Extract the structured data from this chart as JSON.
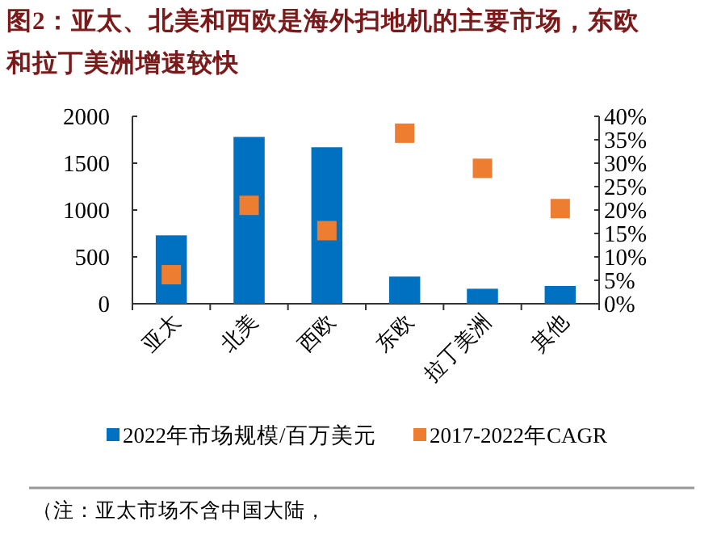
{
  "chart_data": {
    "type": "bar",
    "title": "图2：亚太、北美和西欧是海外扫地机的主要市场，东欧和拉丁美洲增速较快",
    "categories": [
      "亚太",
      "北美",
      "西欧",
      "东欧",
      "拉丁美洲",
      "其他"
    ],
    "series": [
      {
        "name": "2022年市场规模/百万美元",
        "color": "#0070c0",
        "values": [
          730,
          1780,
          1670,
          290,
          160,
          190
        ]
      },
      {
        "name": "2017-2022年CAGR",
        "type": "scatter",
        "axis": "y2",
        "marker": "square",
        "color": "#ed7d31",
        "values": [
          6.2,
          21.0,
          15.6,
          36.4,
          28.9,
          20.3
        ]
      }
    ],
    "ylim": [
      0,
      2000
    ],
    "yticks": [
      0,
      500,
      1000,
      1500,
      2000
    ],
    "y2lim": [
      0,
      40
    ],
    "y2ticks": [
      {
        "value": 0,
        "label": "0%"
      },
      {
        "value": 5,
        "label": "5%"
      },
      {
        "value": 10,
        "label": "10%"
      },
      {
        "value": 15,
        "label": "15%"
      },
      {
        "value": 20,
        "label": "20%"
      },
      {
        "value": 25,
        "label": "25%"
      },
      {
        "value": 30,
        "label": "30%"
      },
      {
        "value": 35,
        "label": "35%"
      },
      {
        "value": 40,
        "label": "40%"
      }
    ],
    "grid": false,
    "legend": "bottom",
    "annotations": [
      "（注：亚太市场不含中国大陆，"
    ]
  }
}
